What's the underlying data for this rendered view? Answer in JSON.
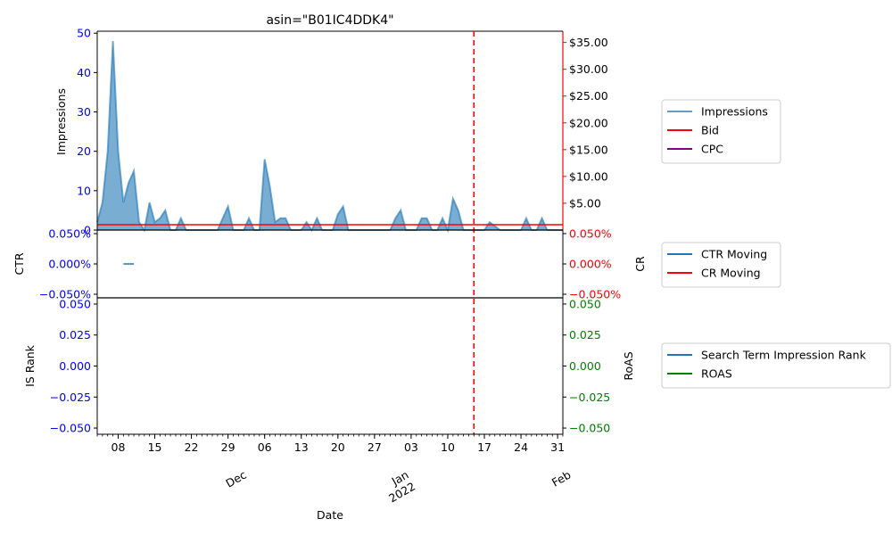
{
  "title": "asin=\"B01IC4DDK4\"",
  "colors": {
    "impressions": "#1f77b4",
    "bid": "#ff0000",
    "cpc": "#800080",
    "ctr": "#1f77b4",
    "cr": "#ff0000",
    "is_rank": "#1f77b4",
    "roas": "#008000",
    "left_axis": "#0000ff",
    "right_axis_money": "#ff0000",
    "right_axis_cr": "#ff0000",
    "right_axis_roas": "#008000",
    "vline": "#ff0000"
  },
  "chart_data": [
    {
      "type": "area",
      "panel": "top",
      "title": "asin=\"B01IC4DDK4\"",
      "ylabel": "Impressions",
      "ylim": [
        0,
        50.5
      ],
      "yticks": [
        "0",
        "10",
        "20",
        "30",
        "40",
        "50"
      ],
      "ytick_values": [
        0,
        10,
        20,
        30,
        40,
        50
      ],
      "y2lim": [
        0,
        37.1
      ],
      "y2ticks": [
        "$5.00",
        "$10.00",
        "$15.00",
        "$20.00",
        "$25.00",
        "$30.00",
        "$35.00"
      ],
      "y2tick_values": [
        5,
        10,
        15,
        20,
        25,
        30,
        35
      ],
      "x_start": "2021-11-04",
      "x_end": "2022-02-01",
      "vline_date": "2022-01-15",
      "series": [
        {
          "name": "Impressions",
          "kind": "area",
          "x": [
            "2021-11-04",
            "2021-11-05",
            "2021-11-06",
            "2021-11-07",
            "2021-11-08",
            "2021-11-09",
            "2021-11-10",
            "2021-11-11",
            "2021-11-12",
            "2021-11-13",
            "2021-11-14",
            "2021-11-15",
            "2021-11-16",
            "2021-11-17",
            "2021-11-18",
            "2021-11-19",
            "2021-11-20",
            "2021-11-21",
            "2021-11-22",
            "2021-11-23",
            "2021-11-24",
            "2021-11-25",
            "2021-11-26",
            "2021-11-27",
            "2021-11-28",
            "2021-11-29",
            "2021-11-30",
            "2021-12-01",
            "2021-12-02",
            "2021-12-03",
            "2021-12-04",
            "2021-12-05",
            "2021-12-06",
            "2021-12-07",
            "2021-12-08",
            "2021-12-09",
            "2021-12-10",
            "2021-12-11",
            "2021-12-12",
            "2021-12-13",
            "2021-12-14",
            "2021-12-15",
            "2021-12-16",
            "2021-12-17",
            "2021-12-18",
            "2021-12-19",
            "2021-12-20",
            "2021-12-21",
            "2021-12-22",
            "2021-12-23",
            "2021-12-24",
            "2021-12-25",
            "2021-12-26",
            "2021-12-27",
            "2021-12-28",
            "2021-12-29",
            "2021-12-30",
            "2021-12-31",
            "2022-01-01",
            "2022-01-02",
            "2022-01-03",
            "2022-01-04",
            "2022-01-05",
            "2022-01-06",
            "2022-01-07",
            "2022-01-08",
            "2022-01-09",
            "2022-01-10",
            "2022-01-11",
            "2022-01-12",
            "2022-01-13",
            "2022-01-14",
            "2022-01-15",
            "2022-01-16",
            "2022-01-17",
            "2022-01-18",
            "2022-01-19",
            "2022-01-20",
            "2022-01-21",
            "2022-01-22",
            "2022-01-23",
            "2022-01-24",
            "2022-01-25",
            "2022-01-26",
            "2022-01-27",
            "2022-01-28",
            "2022-01-29",
            "2022-01-30",
            "2022-01-31",
            "2022-02-01"
          ],
          "values": [
            2,
            7,
            20,
            48,
            20,
            7,
            12,
            15,
            2,
            0,
            7,
            2,
            3,
            5,
            0,
            0,
            3,
            0,
            0,
            0,
            0,
            0,
            0,
            0,
            3,
            6,
            0,
            0,
            0,
            3,
            0,
            0,
            18,
            11,
            2,
            3,
            3,
            0,
            0,
            0,
            2,
            0,
            3,
            0,
            0,
            0,
            4,
            6,
            0,
            0,
            0,
            0,
            0,
            0,
            0,
            0,
            0,
            3,
            5,
            0,
            0,
            0,
            3,
            3,
            0,
            0,
            3,
            0,
            8,
            5,
            0,
            0,
            0,
            0,
            0,
            2,
            1,
            0,
            0,
            0,
            0,
            0,
            3,
            0,
            0,
            3,
            0,
            0,
            0,
            0
          ]
        },
        {
          "name": "Bid",
          "kind": "line",
          "value": 1.0
        },
        {
          "name": "CPC",
          "kind": "line",
          "value": 0
        }
      ],
      "legend": [
        "Impressions",
        "Bid",
        "CPC"
      ]
    },
    {
      "type": "line",
      "panel": "middle",
      "ylabel": "CTR",
      "y2label": "CR",
      "ylim": [
        -0.05,
        0.05
      ],
      "yticks": [
        "−0.050%",
        "0.000%",
        "0.050%"
      ],
      "ytick_values": [
        -0.05,
        0,
        0.05
      ],
      "y2ticks": [
        "−0.050%",
        "0.000%",
        "0.050%"
      ],
      "y2tick_values": [
        -0.05,
        0,
        0.05
      ],
      "series": [
        {
          "name": "CTR Moving",
          "x": [
            "2021-11-09",
            "2021-11-11"
          ],
          "values": [
            0,
            0
          ]
        },
        {
          "name": "CR Moving",
          "x": [],
          "values": []
        }
      ],
      "legend": [
        "CTR Moving",
        "CR Moving"
      ]
    },
    {
      "type": "line",
      "panel": "bottom",
      "ylabel": "IS Rank",
      "y2label": "RoAS",
      "xlabel": "Date",
      "ylim": [
        -0.055,
        0.055
      ],
      "yticks": [
        "−0.050",
        "−0.025",
        "0.000",
        "0.025",
        "0.050"
      ],
      "ytick_values": [
        -0.05,
        -0.025,
        0,
        0.025,
        0.05
      ],
      "y2ticks": [
        "−0.050",
        "−0.025",
        "0.000",
        "0.025",
        "0.050"
      ],
      "y2tick_values": [
        -0.05,
        -0.025,
        0,
        0.025,
        0.05
      ],
      "series": [
        {
          "name": "Search Term Impression Rank",
          "x": [],
          "values": []
        },
        {
          "name": "ROAS",
          "x": [],
          "values": []
        }
      ],
      "legend": [
        "Search Term Impression Rank",
        "ROAS"
      ],
      "xtick_labels": [
        {
          "date": "2021-11-08",
          "label": "08"
        },
        {
          "date": "2021-11-15",
          "label": "15"
        },
        {
          "date": "2021-11-22",
          "label": "22"
        },
        {
          "date": "2021-11-29",
          "label": "29"
        },
        {
          "date": "2021-12-06",
          "label": "06"
        },
        {
          "date": "2021-12-13",
          "label": "13"
        },
        {
          "date": "2021-12-20",
          "label": "20"
        },
        {
          "date": "2021-12-27",
          "label": "27"
        },
        {
          "date": "2022-01-03",
          "label": "03"
        },
        {
          "date": "2022-01-10",
          "label": "10"
        },
        {
          "date": "2022-01-17",
          "label": "17"
        },
        {
          "date": "2022-01-24",
          "label": "24"
        },
        {
          "date": "2022-01-31",
          "label": "31"
        }
      ],
      "month_labels": [
        {
          "date": "2021-12-01",
          "label": "Dec"
        },
        {
          "date": "2022-01-01",
          "label": "Jan\n2022"
        },
        {
          "date": "2022-02-01",
          "label": "Feb"
        }
      ]
    }
  ]
}
